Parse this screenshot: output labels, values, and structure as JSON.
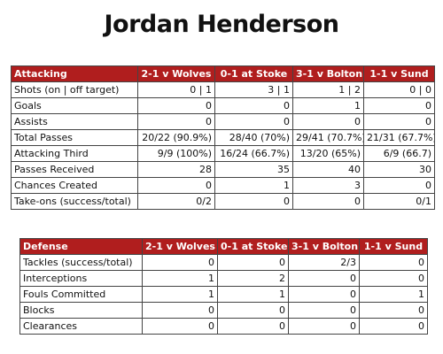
{
  "title": "Jordan Henderson",
  "tables": [
    {
      "header": [
        "Attacking",
        "2-1 v Wolves",
        "0-1 at Stoke",
        "3-1 v Bolton",
        "1-1 v Sund"
      ],
      "rows": [
        [
          "Shots (on | off target)",
          "0 | 1",
          "3 | 1",
          "1 | 2",
          "0 | 0"
        ],
        [
          "Goals",
          "0",
          "0",
          "1",
          "0"
        ],
        [
          "Assists",
          "0",
          "0",
          "0",
          "0"
        ],
        [
          "Total Passes",
          "20/22 (90.9%)",
          "28/40 (70%)",
          "29/41 (70.7%)",
          "21/31 (67.7%)"
        ],
        [
          "Attacking Third",
          "9/9 (100%)",
          "16/24 (66.7%)",
          "13/20 (65%)",
          "6/9 (66.7)"
        ],
        [
          "Passes Received",
          "28",
          "35",
          "40",
          "30"
        ],
        [
          "Chances Created",
          "0",
          "1",
          "3",
          "0"
        ],
        [
          "Take-ons (success/total)",
          "0/2",
          "0",
          "0",
          "0/1"
        ]
      ]
    },
    {
      "header": [
        "Defense",
        "2-1 v Wolves",
        "0-1 at Stoke",
        "3-1 v Bolton",
        "1-1 v Sund"
      ],
      "rows": [
        [
          "Tackles (success/total)",
          "0",
          "0",
          "2/3",
          "0"
        ],
        [
          "Interceptions",
          "1",
          "2",
          "0",
          "0"
        ],
        [
          "Fouls Committed",
          "1",
          "1",
          "0",
          "1"
        ],
        [
          "Blocks",
          "0",
          "0",
          "0",
          "0"
        ],
        [
          "Clearances",
          "0",
          "0",
          "0",
          "0"
        ]
      ]
    }
  ]
}
